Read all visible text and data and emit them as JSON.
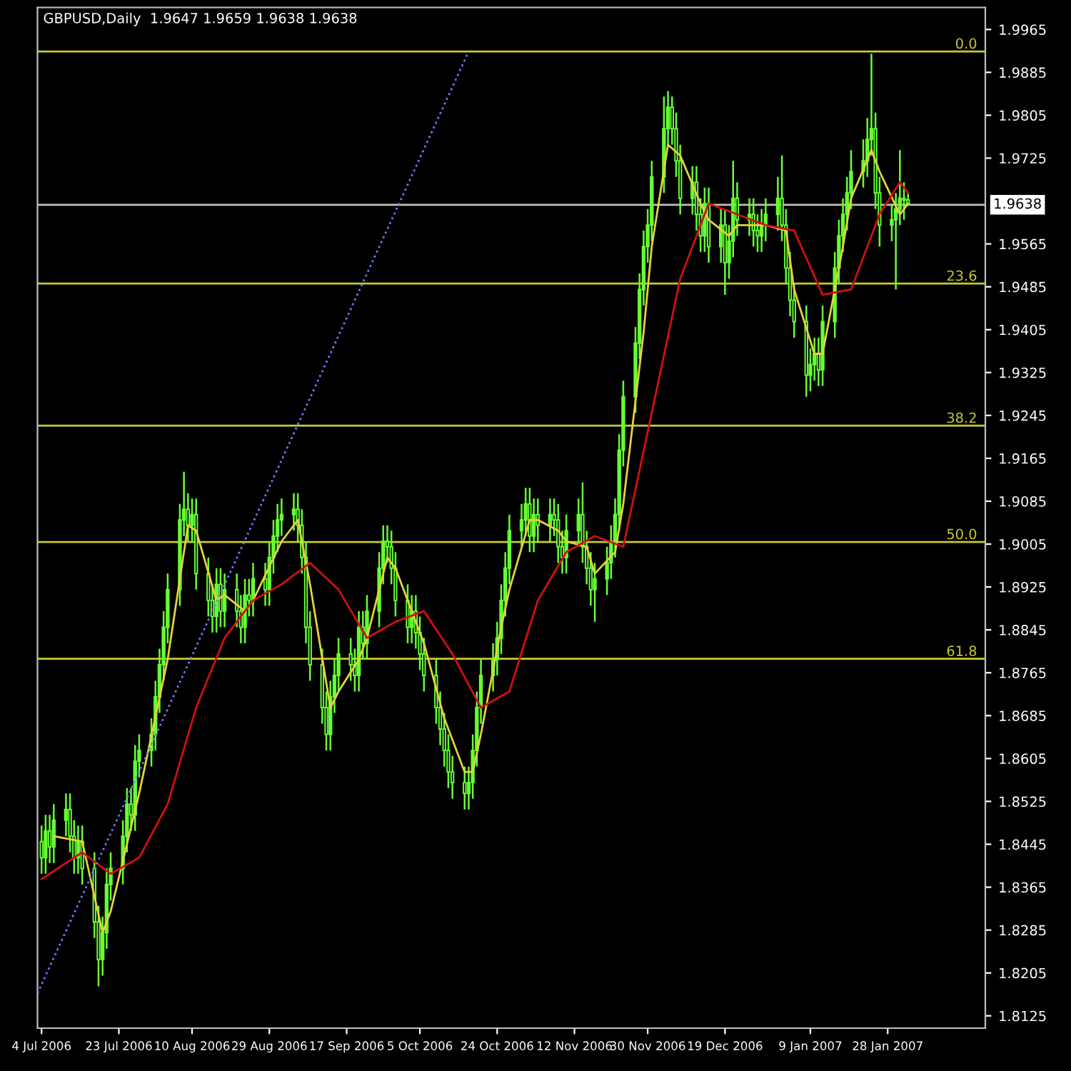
{
  "chart_data": {
    "type": "candlestick",
    "title": "GBPUSD,Daily  1.9647 1.9659 1.9638 1.9638",
    "color": "#66ff33",
    "x": [
      "2006-07-04",
      "2006-07-05",
      "2006-07-06",
      "2006-07-07",
      "2006-07-10",
      "2006-07-11",
      "2006-07-12",
      "2006-07-13",
      "2006-07-14",
      "2006-07-17",
      "2006-07-18",
      "2006-07-19",
      "2006-07-20",
      "2006-07-21",
      "2006-07-24",
      "2006-07-25",
      "2006-07-26",
      "2006-07-27",
      "2006-07-28",
      "2006-07-31",
      "2006-08-01",
      "2006-08-02",
      "2006-08-03",
      "2006-08-04",
      "2006-08-07",
      "2006-08-08",
      "2006-08-09",
      "2006-08-10",
      "2006-08-11",
      "2006-08-14",
      "2006-08-15",
      "2006-08-16",
      "2006-08-17",
      "2006-08-18",
      "2006-08-21",
      "2006-08-22",
      "2006-08-23",
      "2006-08-24",
      "2006-08-25",
      "2006-08-28",
      "2006-08-29",
      "2006-08-30",
      "2006-08-31",
      "2006-09-01",
      "2006-09-04",
      "2006-09-05",
      "2006-09-06",
      "2006-09-07",
      "2006-09-08",
      "2006-09-11",
      "2006-09-12",
      "2006-09-13",
      "2006-09-14",
      "2006-09-15",
      "2006-09-18",
      "2006-09-19",
      "2006-09-20",
      "2006-09-21",
      "2006-09-22",
      "2006-09-25",
      "2006-09-26",
      "2006-09-27",
      "2006-09-28",
      "2006-09-29",
      "2006-10-02",
      "2006-10-03",
      "2006-10-04",
      "2006-10-05",
      "2006-10-06",
      "2006-10-09",
      "2006-10-10",
      "2006-10-11",
      "2006-10-12",
      "2006-10-13",
      "2006-10-16",
      "2006-10-17",
      "2006-10-18",
      "2006-10-19",
      "2006-10-20",
      "2006-10-23",
      "2006-10-24",
      "2006-10-25",
      "2006-10-26",
      "2006-10-27",
      "2006-10-30",
      "2006-10-31",
      "2006-11-01",
      "2006-11-02",
      "2006-11-03",
      "2006-11-06",
      "2006-11-07",
      "2006-11-08",
      "2006-11-09",
      "2006-11-10",
      "2006-11-13",
      "2006-11-14",
      "2006-11-15",
      "2006-11-16",
      "2006-11-17",
      "2006-11-20",
      "2006-11-21",
      "2006-11-22",
      "2006-11-23",
      "2006-11-24",
      "2006-11-27",
      "2006-11-28",
      "2006-11-29",
      "2006-11-30",
      "2006-12-01",
      "2006-12-04",
      "2006-12-05",
      "2006-12-06",
      "2006-12-07",
      "2006-12-08",
      "2006-12-11",
      "2006-12-12",
      "2006-12-13",
      "2006-12-14",
      "2006-12-15",
      "2006-12-18",
      "2006-12-19",
      "2006-12-20",
      "2006-12-21",
      "2006-12-22",
      "2006-12-25",
      "2006-12-26",
      "2006-12-27",
      "2006-12-28",
      "2006-12-29",
      "2007-01-01",
      "2007-01-02",
      "2007-01-03",
      "2007-01-04",
      "2007-01-05",
      "2007-01-08",
      "2007-01-09",
      "2007-01-10",
      "2007-01-11",
      "2007-01-12",
      "2007-01-15",
      "2007-01-16",
      "2007-01-17",
      "2007-01-18",
      "2007-01-19",
      "2007-01-22",
      "2007-01-23",
      "2007-01-24",
      "2007-01-25",
      "2007-01-26",
      "2007-01-29",
      "2007-01-30",
      "2007-01-31",
      "2007-02-01",
      "2007-02-02"
    ],
    "ohlc": [
      [
        1.845,
        1.848,
        1.839,
        1.842
      ],
      [
        1.842,
        1.85,
        1.839,
        1.847
      ],
      [
        1.847,
        1.85,
        1.841,
        1.844
      ],
      [
        1.844,
        1.852,
        1.841,
        1.849
      ],
      [
        1.849,
        1.854,
        1.846,
        1.851
      ],
      [
        1.851,
        1.854,
        1.843,
        1.846
      ],
      [
        1.846,
        1.849,
        1.839,
        1.842
      ],
      [
        1.842,
        1.848,
        1.839,
        1.845
      ],
      [
        1.845,
        1.848,
        1.837,
        1.84
      ],
      [
        1.84,
        1.843,
        1.827,
        1.83
      ],
      [
        1.83,
        1.833,
        1.818,
        1.823
      ],
      [
        1.823,
        1.831,
        1.82,
        1.828
      ],
      [
        1.828,
        1.84,
        1.825,
        1.837
      ],
      [
        1.837,
        1.843,
        1.834,
        1.84
      ],
      [
        1.84,
        1.849,
        1.837,
        1.846
      ],
      [
        1.846,
        1.855,
        1.843,
        1.852
      ],
      [
        1.852,
        1.855,
        1.847,
        1.85
      ],
      [
        1.85,
        1.863,
        1.847,
        1.86
      ],
      [
        1.86,
        1.865,
        1.857,
        1.862
      ],
      [
        1.862,
        1.868,
        1.859,
        1.865
      ],
      [
        1.865,
        1.875,
        1.862,
        1.872
      ],
      [
        1.872,
        1.881,
        1.869,
        1.878
      ],
      [
        1.878,
        1.888,
        1.875,
        1.885
      ],
      [
        1.885,
        1.895,
        1.882,
        1.892
      ],
      [
        1.892,
        1.908,
        1.889,
        1.905
      ],
      [
        1.905,
        1.914,
        1.902,
        1.907
      ],
      [
        1.907,
        1.91,
        1.901,
        1.904
      ],
      [
        1.904,
        1.909,
        1.901,
        1.906
      ],
      [
        1.906,
        1.909,
        1.892,
        1.895
      ],
      [
        1.895,
        1.898,
        1.887,
        1.89
      ],
      [
        1.89,
        1.893,
        1.884,
        1.887
      ],
      [
        1.887,
        1.896,
        1.884,
        1.893
      ],
      [
        1.893,
        1.896,
        1.885,
        1.888
      ],
      [
        1.888,
        1.895,
        1.885,
        1.892
      ],
      [
        1.892,
        1.895,
        1.885,
        1.888
      ],
      [
        1.888,
        1.891,
        1.882,
        1.885
      ],
      [
        1.885,
        1.894,
        1.882,
        1.891
      ],
      [
        1.891,
        1.894,
        1.887,
        1.89
      ],
      [
        1.89,
        1.897,
        1.887,
        1.894
      ],
      [
        1.894,
        1.897,
        1.889,
        1.892
      ],
      [
        1.892,
        1.901,
        1.889,
        1.898
      ],
      [
        1.898,
        1.905,
        1.895,
        1.902
      ],
      [
        1.902,
        1.908,
        1.899,
        1.905
      ],
      [
        1.905,
        1.909,
        1.902,
        1.906
      ],
      [
        1.906,
        1.91,
        1.903,
        1.907
      ],
      [
        1.907,
        1.91,
        1.901,
        1.904
      ],
      [
        1.904,
        1.907,
        1.895,
        1.898
      ],
      [
        1.898,
        1.901,
        1.882,
        1.885
      ],
      [
        1.885,
        1.888,
        1.875,
        1.878
      ],
      [
        1.878,
        1.881,
        1.867,
        1.87
      ],
      [
        1.87,
        1.873,
        1.862,
        1.865
      ],
      [
        1.865,
        1.875,
        1.862,
        1.872
      ],
      [
        1.872,
        1.879,
        1.869,
        1.876
      ],
      [
        1.876,
        1.883,
        1.873,
        1.88
      ],
      [
        1.88,
        1.883,
        1.875,
        1.878
      ],
      [
        1.878,
        1.881,
        1.873,
        1.876
      ],
      [
        1.876,
        1.888,
        1.873,
        1.885
      ],
      [
        1.885,
        1.888,
        1.879,
        1.882
      ],
      [
        1.882,
        1.891,
        1.879,
        1.888
      ],
      [
        1.888,
        1.899,
        1.885,
        1.896
      ],
      [
        1.896,
        1.904,
        1.893,
        1.901
      ],
      [
        1.901,
        1.904,
        1.897,
        1.9
      ],
      [
        1.9,
        1.903,
        1.893,
        1.896
      ],
      [
        1.896,
        1.899,
        1.887,
        1.89
      ],
      [
        1.89,
        1.893,
        1.882,
        1.885
      ],
      [
        1.885,
        1.891,
        1.882,
        1.888
      ],
      [
        1.888,
        1.891,
        1.881,
        1.884
      ],
      [
        1.884,
        1.887,
        1.877,
        1.88
      ],
      [
        1.88,
        1.883,
        1.873,
        1.876
      ],
      [
        1.876,
        1.879,
        1.867,
        1.87
      ],
      [
        1.87,
        1.873,
        1.863,
        1.866
      ],
      [
        1.866,
        1.869,
        1.859,
        1.862
      ],
      [
        1.862,
        1.865,
        1.855,
        1.858
      ],
      [
        1.858,
        1.861,
        1.853,
        1.856
      ],
      [
        1.856,
        1.859,
        1.851,
        1.854
      ],
      [
        1.854,
        1.859,
        1.851,
        1.856
      ],
      [
        1.856,
        1.865,
        1.853,
        1.862
      ],
      [
        1.862,
        1.873,
        1.859,
        1.87
      ],
      [
        1.87,
        1.879,
        1.867,
        1.876
      ],
      [
        1.876,
        1.882,
        1.873,
        1.879
      ],
      [
        1.879,
        1.886,
        1.876,
        1.883
      ],
      [
        1.883,
        1.893,
        1.88,
        1.89
      ],
      [
        1.89,
        1.899,
        1.887,
        1.896
      ],
      [
        1.896,
        1.906,
        1.893,
        1.903
      ],
      [
        1.903,
        1.908,
        1.9,
        1.905
      ],
      [
        1.905,
        1.911,
        1.902,
        1.908
      ],
      [
        1.908,
        1.911,
        1.899,
        1.902
      ],
      [
        1.902,
        1.909,
        1.899,
        1.906
      ],
      [
        1.906,
        1.909,
        1.901,
        1.904
      ],
      [
        1.904,
        1.909,
        1.901,
        1.906
      ],
      [
        1.906,
        1.909,
        1.902,
        1.905
      ],
      [
        1.905,
        1.908,
        1.897,
        1.9
      ],
      [
        1.9,
        1.903,
        1.895,
        1.898
      ],
      [
        1.898,
        1.906,
        1.895,
        1.903
      ],
      [
        1.903,
        1.909,
        1.9,
        1.906
      ],
      [
        1.906,
        1.912,
        1.897,
        1.9
      ],
      [
        1.9,
        1.903,
        1.893,
        1.896
      ],
      [
        1.896,
        1.899,
        1.889,
        1.892
      ],
      [
        1.892,
        1.897,
        1.886,
        1.894
      ],
      [
        1.894,
        1.9,
        1.891,
        1.897
      ],
      [
        1.897,
        1.904,
        1.894,
        1.901
      ],
      [
        1.901,
        1.909,
        1.898,
        1.906
      ],
      [
        1.906,
        1.921,
        1.903,
        1.918
      ],
      [
        1.918,
        1.931,
        1.915,
        1.928
      ],
      [
        1.928,
        1.941,
        1.925,
        1.938
      ],
      [
        1.938,
        1.951,
        1.935,
        1.948
      ],
      [
        1.948,
        1.959,
        1.945,
        1.956
      ],
      [
        1.956,
        1.963,
        1.953,
        1.96
      ],
      [
        1.96,
        1.972,
        1.957,
        1.969
      ],
      [
        1.969,
        1.984,
        1.966,
        1.978
      ],
      [
        1.978,
        1.985,
        1.975,
        1.982
      ],
      [
        1.982,
        1.984,
        1.975,
        1.978
      ],
      [
        1.978,
        1.981,
        1.969,
        1.972
      ],
      [
        1.972,
        1.975,
        1.962,
        1.965
      ],
      [
        1.965,
        1.971,
        1.962,
        1.968
      ],
      [
        1.968,
        1.971,
        1.959,
        1.962
      ],
      [
        1.962,
        1.965,
        1.955,
        1.958
      ],
      [
        1.958,
        1.967,
        1.955,
        1.964
      ],
      [
        1.964,
        1.967,
        1.953,
        1.956
      ],
      [
        1.956,
        1.963,
        1.953,
        1.96
      ],
      [
        1.96,
        1.963,
        1.947,
        1.953
      ],
      [
        1.953,
        1.96,
        1.95,
        1.957
      ],
      [
        1.957,
        1.972,
        1.954,
        1.965
      ],
      [
        1.965,
        1.968,
        1.958,
        1.961
      ],
      [
        1.961,
        1.965,
        1.958,
        1.962
      ],
      [
        1.962,
        1.965,
        1.956,
        1.959
      ],
      [
        1.959,
        1.962,
        1.955,
        1.958
      ],
      [
        1.958,
        1.963,
        1.955,
        1.96
      ],
      [
        1.96,
        1.965,
        1.957,
        1.962
      ],
      [
        1.962,
        1.969,
        1.959,
        1.965
      ],
      [
        1.965,
        1.973,
        1.957,
        1.96
      ],
      [
        1.96,
        1.963,
        1.949,
        1.952
      ],
      [
        1.952,
        1.955,
        1.943,
        1.946
      ],
      [
        1.946,
        1.949,
        1.939,
        1.942
      ],
      [
        1.942,
        1.945,
        1.928,
        1.932
      ],
      [
        1.932,
        1.937,
        1.929,
        1.934
      ],
      [
        1.934,
        1.939,
        1.931,
        1.936
      ],
      [
        1.936,
        1.939,
        1.93,
        1.933
      ],
      [
        1.933,
        1.945,
        1.93,
        1.942
      ],
      [
        1.942,
        1.955,
        1.939,
        1.952
      ],
      [
        1.952,
        1.961,
        1.949,
        1.958
      ],
      [
        1.958,
        1.965,
        1.955,
        1.962
      ],
      [
        1.962,
        1.969,
        1.959,
        1.966
      ],
      [
        1.966,
        1.974,
        1.963,
        1.97
      ],
      [
        1.97,
        1.976,
        1.967,
        1.972
      ],
      [
        1.972,
        1.98,
        1.969,
        1.976
      ],
      [
        1.976,
        1.992,
        1.973,
        1.978
      ],
      [
        1.978,
        1.981,
        1.963,
        1.966
      ],
      [
        1.966,
        1.969,
        1.956,
        1.96
      ],
      [
        1.96,
        1.964,
        1.957,
        1.961
      ],
      [
        1.961,
        1.966,
        1.948,
        1.963
      ],
      [
        1.963,
        1.974,
        1.96,
        1.965
      ],
      [
        1.965,
        1.968,
        1.961,
        1.9647
      ],
      [
        1.9647,
        1.9659,
        1.9638,
        1.9638
      ]
    ],
    "series": [
      {
        "type": "line",
        "color": "#e6d23c",
        "line_style": "solid",
        "x": [
          "2006-07-07",
          "2006-07-14",
          "2006-07-19",
          "2006-07-21",
          "2006-07-28",
          "2006-08-04",
          "2006-08-09",
          "2006-08-11",
          "2006-08-16",
          "2006-08-18",
          "2006-08-23",
          "2006-08-25",
          "2006-09-01",
          "2006-09-05",
          "2006-09-08",
          "2006-09-13",
          "2006-09-15",
          "2006-09-20",
          "2006-09-22",
          "2006-09-27",
          "2006-09-29",
          "2006-10-04",
          "2006-10-06",
          "2006-10-11",
          "2006-10-16",
          "2006-10-18",
          "2006-10-20",
          "2006-10-25",
          "2006-10-27",
          "2006-11-01",
          "2006-11-03",
          "2006-11-08",
          "2006-11-10",
          "2006-11-15",
          "2006-11-17",
          "2006-11-22",
          "2006-11-24",
          "2006-11-29",
          "2006-12-01",
          "2006-12-05",
          "2006-12-08",
          "2006-12-13",
          "2006-12-15",
          "2006-12-20",
          "2006-12-22",
          "2006-12-27",
          "2006-12-29",
          "2007-01-03",
          "2007-01-05",
          "2007-01-10",
          "2007-01-12",
          "2007-01-17",
          "2007-01-19",
          "2007-01-24",
          "2007-01-26",
          "2007-01-31",
          "2007-02-02"
        ],
        "values": [
          1.846,
          1.845,
          1.828,
          1.832,
          1.854,
          1.879,
          1.904,
          1.903,
          1.89,
          1.891,
          1.888,
          1.89,
          1.901,
          1.905,
          1.893,
          1.87,
          1.873,
          1.879,
          1.883,
          1.898,
          1.896,
          1.886,
          1.882,
          1.868,
          1.858,
          1.858,
          1.865,
          1.885,
          1.892,
          1.905,
          1.905,
          1.903,
          1.901,
          1.9,
          1.895,
          1.899,
          1.908,
          1.94,
          1.956,
          1.975,
          1.973,
          1.964,
          1.961,
          1.958,
          1.96,
          1.96,
          1.96,
          1.959,
          1.948,
          1.936,
          1.936,
          1.956,
          1.965,
          1.974,
          1.97,
          1.962,
          1.964
        ]
      },
      {
        "type": "line",
        "color": "#d01010",
        "line_style": "solid",
        "x": [
          "2006-07-04",
          "2006-07-14",
          "2006-07-21",
          "2006-07-28",
          "2006-08-04",
          "2006-08-11",
          "2006-08-18",
          "2006-08-25",
          "2006-09-01",
          "2006-09-08",
          "2006-09-15",
          "2006-09-22",
          "2006-09-29",
          "2006-10-06",
          "2006-10-13",
          "2006-10-20",
          "2006-10-27",
          "2006-11-03",
          "2006-11-10",
          "2006-11-17",
          "2006-11-24",
          "2006-12-01",
          "2006-12-08",
          "2006-12-15",
          "2006-12-22",
          "2006-12-29",
          "2007-01-05",
          "2007-01-12",
          "2007-01-19",
          "2007-01-26",
          "2007-01-31",
          "2007-02-02"
        ],
        "values": [
          1.838,
          1.843,
          1.839,
          1.842,
          1.852,
          1.87,
          1.883,
          1.89,
          1.893,
          1.897,
          1.892,
          1.883,
          1.886,
          1.888,
          1.88,
          1.87,
          1.873,
          1.89,
          1.899,
          1.902,
          1.9,
          1.925,
          1.95,
          1.964,
          1.962,
          1.96,
          1.959,
          1.947,
          1.948,
          1.962,
          1.968,
          1.966
        ]
      },
      {
        "type": "line",
        "color": "#6a7cff",
        "line_style": "dotted",
        "x": [
          "2006-07-03",
          "2006-10-17"
        ],
        "values": [
          1.8167,
          1.9924
        ]
      }
    ],
    "annotations": [
      {
        "text": "0.0",
        "x": "2007-02-21",
        "y": 1.9924
      },
      {
        "text": "23.6",
        "x": "2007-02-21",
        "y": 1.9491
      },
      {
        "text": "38.2",
        "x": "2007-02-21",
        "y": 1.9226
      },
      {
        "text": "50.0",
        "x": "2007-02-21",
        "y": 1.9009
      },
      {
        "text": "61.8",
        "x": "2007-02-21",
        "y": 1.8791
      }
    ],
    "ref_lines": [
      {
        "axis": "y",
        "value": 1.9924,
        "color": "#c8c832"
      },
      {
        "axis": "y",
        "value": 1.9491,
        "color": "#c8c832"
      },
      {
        "axis": "y",
        "value": 1.9226,
        "color": "#c8c832"
      },
      {
        "axis": "y",
        "value": 1.9009,
        "color": "#c8c832"
      },
      {
        "axis": "y",
        "value": 1.8791,
        "color": "#c8c832"
      },
      {
        "axis": "y",
        "value": 1.9638,
        "label": "1.9638",
        "color": "#c0c0c0"
      }
    ],
    "xlim": [
      "2006-07-03",
      "2007-02-21"
    ],
    "xticks": [
      {
        "value": "2006-07-04",
        "label": "4 Jul 2006"
      },
      {
        "value": "2006-07-23",
        "label": "23 Jul 2006"
      },
      {
        "value": "2006-08-10",
        "label": "10 Aug 2006"
      },
      {
        "value": "2006-08-29",
        "label": "29 Aug 2006"
      },
      {
        "value": "2006-09-17",
        "label": "17 Sep 2006"
      },
      {
        "value": "2006-10-05",
        "label": "5 Oct 2006"
      },
      {
        "value": "2006-10-24",
        "label": "24 Oct 2006"
      },
      {
        "value": "2006-11-12",
        "label": "12 Nov 2006"
      },
      {
        "value": "2006-11-30",
        "label": "30 Nov 2006"
      },
      {
        "value": "2006-12-19",
        "label": "19 Dec 2006"
      },
      {
        "value": "2007-01-09",
        "label": "9 Jan 2007"
      },
      {
        "value": "2007-01-28",
        "label": "28 Jan 2007"
      }
    ],
    "ylim": [
      1.8102,
      2.0006
    ],
    "yticks": [
      1.9965,
      1.9885,
      1.9805,
      1.9725,
      1.9565,
      1.9485,
      1.9405,
      1.9325,
      1.9245,
      1.9165,
      1.9085,
      1.9005,
      1.8925,
      1.8845,
      1.8765,
      1.8685,
      1.8605,
      1.8525,
      1.8445,
      1.8365,
      1.8285,
      1.8205,
      1.8125
    ],
    "grid": false
  }
}
